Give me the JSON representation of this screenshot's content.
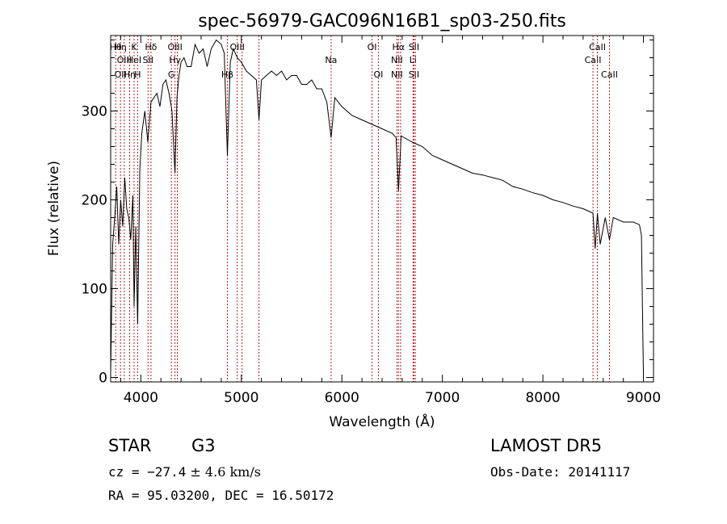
{
  "chart_data": {
    "type": "line",
    "title": "spec-56979-GAC096N16B1_sp03-250.fits",
    "xlabel": "Wavelength (Å)",
    "ylabel": "Flux (relative)",
    "xlim": [
      3700,
      9100
    ],
    "ylim": [
      -5,
      385
    ],
    "xticks": [
      4000,
      5000,
      6000,
      7000,
      8000,
      9000
    ],
    "yticks": [
      0,
      100,
      200,
      300
    ],
    "grid": false,
    "line_color": "#000000",
    "marker_color": "#b22222",
    "series": [
      {
        "x": [
          3700,
          3720,
          3740,
          3760,
          3780,
          3800,
          3820,
          3840,
          3860,
          3880,
          3900,
          3920,
          3933,
          3950,
          3968,
          3990,
          4010,
          4040,
          4070,
          4101,
          4130,
          4160,
          4190,
          4220,
          4250,
          4280,
          4310,
          4340,
          4360,
          4380,
          4400,
          4430,
          4460,
          4500,
          4540,
          4580,
          4620,
          4660,
          4700,
          4750,
          4800,
          4830,
          4861,
          4890,
          4920,
          4960,
          5000,
          5050,
          5100,
          5150,
          5175,
          5200,
          5250,
          5300,
          5350,
          5400,
          5450,
          5500,
          5550,
          5600,
          5650,
          5700,
          5750,
          5800,
          5850,
          5893,
          5930,
          6000,
          6100,
          6200,
          6300,
          6400,
          6500,
          6540,
          6563,
          6590,
          6620,
          6700,
          6800,
          6900,
          7000,
          7100,
          7200,
          7300,
          7400,
          7500,
          7600,
          7700,
          7800,
          7900,
          8000,
          8100,
          8200,
          8300,
          8400,
          8498,
          8520,
          8542,
          8570,
          8620,
          8662,
          8700,
          8800,
          8900,
          8960,
          8980,
          8990,
          9000
        ],
        "y": [
          5,
          150,
          180,
          215,
          150,
          200,
          170,
          225,
          190,
          180,
          155,
          205,
          80,
          170,
          60,
          235,
          275,
          300,
          265,
          310,
          315,
          320,
          305,
          330,
          335,
          320,
          300,
          230,
          315,
          340,
          355,
          360,
          350,
          350,
          375,
          365,
          370,
          350,
          370,
          380,
          375,
          365,
          250,
          355,
          370,
          360,
          355,
          345,
          340,
          335,
          290,
          335,
          340,
          345,
          340,
          345,
          335,
          340,
          340,
          330,
          330,
          335,
          325,
          325,
          310,
          270,
          315,
          305,
          295,
          290,
          285,
          280,
          275,
          270,
          210,
          272,
          270,
          265,
          260,
          250,
          245,
          240,
          235,
          230,
          228,
          225,
          222,
          215,
          212,
          208,
          205,
          200,
          197,
          193,
          190,
          185,
          145,
          185,
          150,
          180,
          155,
          180,
          175,
          175,
          172,
          160,
          80,
          0
        ]
      }
    ],
    "line_markers": [
      {
        "w": 3750,
        "rows": [
          {
            "r": 0,
            "t": "Hθ"
          }
        ]
      },
      {
        "w": 3798,
        "rows": [
          {
            "r": 0,
            "t": "Hη"
          },
          {
            "r": 2,
            "t": "OII"
          }
        ]
      },
      {
        "w": 3835,
        "rows": [
          {
            "r": 1,
            "t": "OIII"
          }
        ]
      },
      {
        "w": 3889,
        "rows": [
          {
            "r": 2,
            "t": "Hη"
          }
        ]
      },
      {
        "w": 3933,
        "rows": [
          {
            "r": 0,
            "t": "K"
          },
          {
            "r": 1,
            "t": "HeI"
          }
        ]
      },
      {
        "w": 3968,
        "rows": [
          {
            "r": 2,
            "t": "H"
          }
        ]
      },
      {
        "w": 4072,
        "rows": [
          {
            "r": 1,
            "t": "SII"
          }
        ]
      },
      {
        "w": 4101,
        "rows": [
          {
            "r": 0,
            "t": "Hδ"
          }
        ]
      },
      {
        "w": 4304,
        "rows": [
          {
            "r": 2,
            "t": "G"
          }
        ]
      },
      {
        "w": 4340,
        "rows": [
          {
            "r": 0,
            "t": "OIII"
          },
          {
            "r": 1,
            "t": "Hγ"
          }
        ]
      },
      {
        "w": 4363,
        "rows": []
      },
      {
        "w": 4861,
        "rows": [
          {
            "r": 2,
            "t": "Hβ"
          }
        ]
      },
      {
        "w": 4959,
        "rows": [
          {
            "r": 0,
            "t": "OIII"
          }
        ]
      },
      {
        "w": 5007,
        "rows": []
      },
      {
        "w": 5175,
        "rows": []
      },
      {
        "w": 5893,
        "rows": [
          {
            "r": 1,
            "t": "Na"
          }
        ]
      },
      {
        "w": 6300,
        "rows": [
          {
            "r": 0,
            "t": "OI"
          }
        ]
      },
      {
        "w": 6363,
        "rows": [
          {
            "r": 2,
            "t": "OI"
          }
        ]
      },
      {
        "w": 6548,
        "rows": [
          {
            "r": 1,
            "t": "NII"
          },
          {
            "r": 2,
            "t": "NII"
          }
        ]
      },
      {
        "w": 6563,
        "rows": [
          {
            "r": 0,
            "t": "Hα"
          }
        ]
      },
      {
        "w": 6584,
        "rows": []
      },
      {
        "w": 6708,
        "rows": [
          {
            "r": 1,
            "t": "Li"
          }
        ]
      },
      {
        "w": 6717,
        "rows": [
          {
            "r": 0,
            "t": "SII"
          },
          {
            "r": 2,
            "t": "SII"
          }
        ]
      },
      {
        "w": 6731,
        "rows": []
      },
      {
        "w": 8498,
        "rows": [
          {
            "r": 1,
            "t": "CaII"
          }
        ]
      },
      {
        "w": 8542,
        "rows": [
          {
            "r": 0,
            "t": "CaII"
          }
        ]
      },
      {
        "w": 8662,
        "rows": [
          {
            "r": 2,
            "t": "CaII"
          }
        ]
      }
    ]
  },
  "info": {
    "class": "STAR",
    "subclass": "G3",
    "survey": "LAMOST DR5",
    "cz_prefix": "cz = ",
    "cz_value": "−27.4",
    "cz_err": " ± 4.6 km/s",
    "obs_date": "Obs-Date: 20141117",
    "coords": "RA =  95.03200, DEC =  16.50172"
  }
}
